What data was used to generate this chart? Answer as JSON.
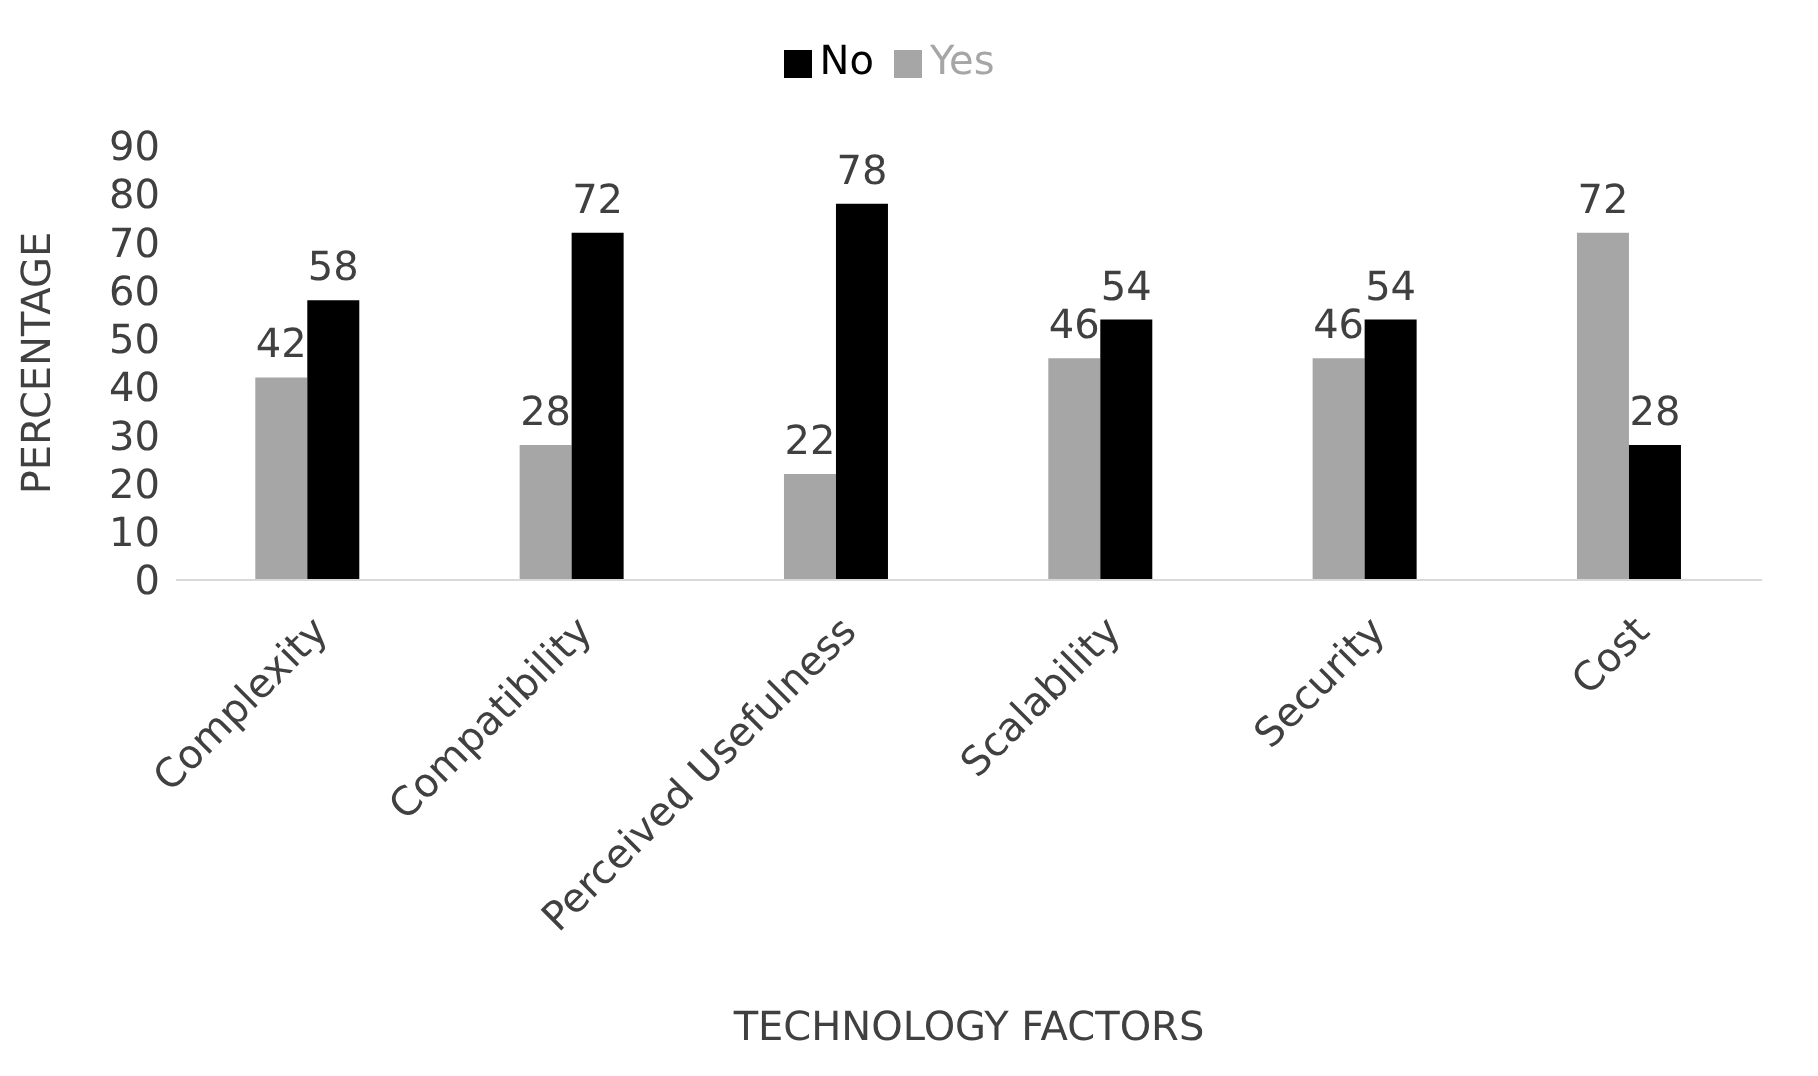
{
  "chart_data": {
    "type": "bar",
    "xlabel": "TECHNOLOGY FACTORS",
    "ylabel": "PERCENTAGE",
    "categories": [
      "Complexity",
      "Compatibility",
      "Perceived Usefulness",
      "Scalability",
      "Security",
      "Cost"
    ],
    "series": [
      {
        "name": "Yes",
        "color": "#a6a6a6",
        "values": [
          42,
          28,
          22,
          46,
          46,
          72
        ]
      },
      {
        "name": "No",
        "color": "#000000",
        "values": [
          58,
          72,
          78,
          54,
          54,
          28
        ]
      }
    ],
    "ylim": [
      0,
      90
    ],
    "yticks": [
      0,
      10,
      20,
      30,
      40,
      50,
      60,
      70,
      80,
      90
    ],
    "data_labels": true,
    "grid": false,
    "legend": "top"
  }
}
